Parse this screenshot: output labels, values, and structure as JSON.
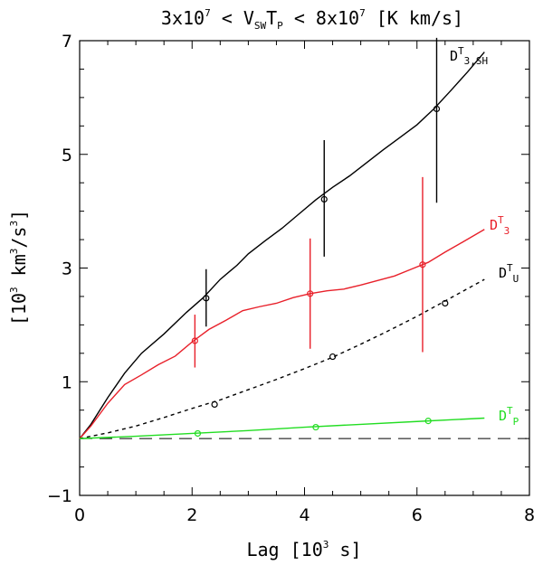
{
  "chart_data": {
    "type": "line",
    "title": {
      "prefix": "3x10",
      "prefix_exp": "7",
      "middle": " < V",
      "sub1": "SW",
      "middle2": "T",
      "sub2": "P",
      "middle3": " < 8x10",
      "suffix_exp": "7",
      "suffix": " [K km/s]"
    },
    "xlabel": "Lag [10",
    "xlabel_exp": "3",
    "xlabel_end": " s]",
    "ylabel": "[10",
    "ylabel_exp1": "3",
    "ylabel_mid": " km",
    "ylabel_exp2": "3",
    "ylabel_mid2": "/s",
    "ylabel_exp3": "3",
    "ylabel_end": "]",
    "xlim": [
      0,
      8
    ],
    "ylim": [
      -1,
      7
    ],
    "xticks": [
      0,
      2,
      4,
      6,
      8
    ],
    "yticks": [
      -1,
      1,
      3,
      5,
      7
    ],
    "xtick_labels": [
      "0",
      "2",
      "4",
      "6",
      "8"
    ],
    "ytick_labels": [
      "−1",
      "1",
      "3",
      "5",
      "7"
    ],
    "zero_line": {
      "y": 0,
      "style": "dashed"
    },
    "series": [
      {
        "name": "D_T_3SH",
        "label_main": "D",
        "label_sup": "T",
        "label_sub": "3,SH",
        "color": "#000000",
        "style": "solid",
        "x": [
          0,
          0.2,
          0.5,
          0.8,
          1.1,
          1.5,
          1.9,
          2.2,
          2.5,
          2.8,
          3.0,
          3.3,
          3.6,
          3.9,
          4.2,
          4.5,
          4.8,
          5.1,
          5.4,
          5.7,
          6.0,
          6.3,
          6.6,
          6.9,
          7.2
        ],
        "y": [
          0,
          0.25,
          0.72,
          1.15,
          1.5,
          1.84,
          2.22,
          2.48,
          2.8,
          3.05,
          3.25,
          3.48,
          3.7,
          3.95,
          4.2,
          4.42,
          4.62,
          4.85,
          5.08,
          5.3,
          5.52,
          5.8,
          6.12,
          6.45,
          6.8
        ],
        "markers": [
          {
            "x": 2.25,
            "y": 2.47,
            "err_low": 1.97,
            "err_high": 2.98
          },
          {
            "x": 4.35,
            "y": 4.21,
            "err_low": 3.2,
            "err_high": 5.25
          },
          {
            "x": 6.35,
            "y": 5.8,
            "err_low": 4.15,
            "err_high": 7.05
          }
        ]
      },
      {
        "name": "D_T_3",
        "label_main": "D",
        "label_sup": "T",
        "label_sub": "3",
        "color": "#e8202a",
        "style": "solid",
        "x": [
          0,
          0.2,
          0.5,
          0.8,
          1.1,
          1.4,
          1.7,
          2.0,
          2.3,
          2.6,
          2.9,
          3.2,
          3.5,
          3.8,
          4.1,
          4.4,
          4.7,
          5.0,
          5.3,
          5.6,
          5.9,
          6.2,
          6.5,
          6.8,
          7.2
        ],
        "y": [
          0,
          0.22,
          0.62,
          0.95,
          1.12,
          1.3,
          1.45,
          1.7,
          1.92,
          2.08,
          2.25,
          2.32,
          2.38,
          2.48,
          2.55,
          2.6,
          2.63,
          2.7,
          2.78,
          2.86,
          2.98,
          3.1,
          3.28,
          3.45,
          3.68
        ],
        "markers": [
          {
            "x": 2.05,
            "y": 1.72,
            "err_low": 1.25,
            "err_high": 2.18
          },
          {
            "x": 4.1,
            "y": 2.55,
            "err_low": 1.58,
            "err_high": 3.52
          },
          {
            "x": 6.1,
            "y": 3.06,
            "err_low": 1.52,
            "err_high": 4.6
          }
        ]
      },
      {
        "name": "D_T_U",
        "label_main": "D",
        "label_sup": "T",
        "label_sub": "U",
        "color": "#000000",
        "style": "dashed",
        "x": [
          0,
          0.5,
          1.0,
          1.5,
          2.0,
          2.5,
          3.0,
          3.5,
          4.0,
          4.5,
          5.0,
          5.5,
          6.0,
          6.5,
          7.2
        ],
        "y": [
          0,
          0.1,
          0.22,
          0.37,
          0.53,
          0.68,
          0.86,
          1.04,
          1.23,
          1.43,
          1.66,
          1.9,
          2.15,
          2.42,
          2.8
        ],
        "markers": [
          {
            "x": 2.4,
            "y": 0.6
          },
          {
            "x": 4.5,
            "y": 1.44
          },
          {
            "x": 6.5,
            "y": 2.38
          }
        ]
      },
      {
        "name": "D_T_P",
        "label_main": "D",
        "label_sup": "T",
        "label_sub": "P",
        "color": "#22dd22",
        "style": "solid",
        "x": [
          0,
          1.0,
          2.0,
          3.0,
          4.0,
          5.0,
          6.0,
          7.2
        ],
        "y": [
          0,
          0.04,
          0.09,
          0.14,
          0.2,
          0.25,
          0.3,
          0.36
        ],
        "markers": [
          {
            "x": 2.1,
            "y": 0.09
          },
          {
            "x": 4.2,
            "y": 0.2
          },
          {
            "x": 6.2,
            "y": 0.31
          }
        ]
      }
    ]
  }
}
